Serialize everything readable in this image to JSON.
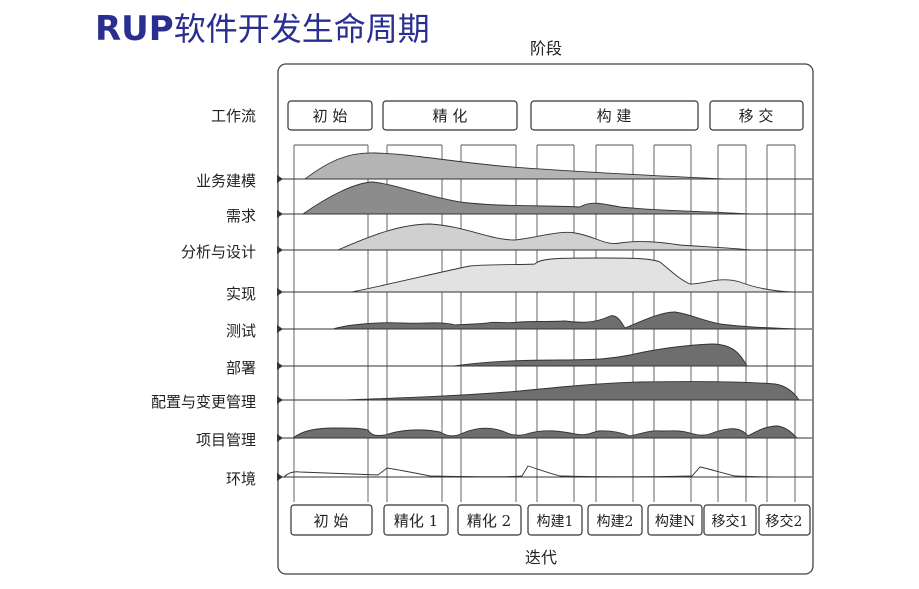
{
  "title": {
    "bold_part": "RUP",
    "rest": "软件开发生命周期"
  },
  "phases_label": "阶段",
  "iterations_label": "迭代",
  "workflow_label": "工作流",
  "phases": [
    "初 始",
    "精 化",
    "构 建",
    "移 交"
  ],
  "workflows": [
    "业务建模",
    "需求",
    "分析与设计",
    "实现",
    "测试",
    "部署",
    "配置与变更管理",
    "项目管理",
    "环境"
  ],
  "iterations": [
    "初 始",
    "精化 1",
    "精化 2",
    "构建1",
    "构建2",
    "构建N",
    "移交1",
    "移交2"
  ],
  "colors": {
    "title": "#2a2f8f",
    "shade_light": "#e2e2e2",
    "shade_mid": "#c4c4c4",
    "shade_mid2": "#a8a8a8",
    "shade_dark": "#6e6e6e",
    "stroke": "#333333"
  }
}
